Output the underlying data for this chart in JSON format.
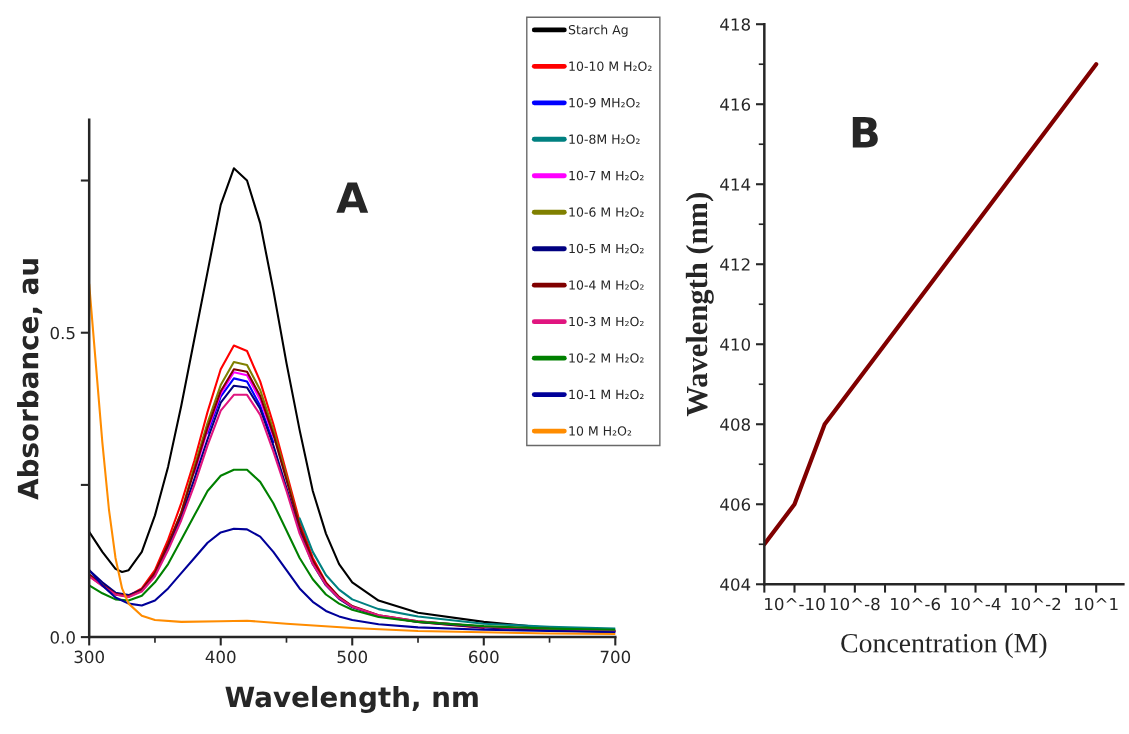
{
  "chart_data": [
    {
      "type": "line",
      "xlabel": "Wavelength, nm",
      "ylabel": "Absorbance, au",
      "annotations": [
        "A"
      ],
      "legend": "top right",
      "xlim": [
        300,
        700
      ],
      "xticks": [
        300,
        400,
        500,
        600,
        700
      ],
      "ylim": [
        0,
        0.85
      ],
      "yticks": [
        {
          "value": 0,
          "label": "0.0"
        },
        {
          "value": 0.25,
          "label": null
        },
        0.5,
        {
          "value": 0.75,
          "label": null
        }
      ],
      "grid": false,
      "x": [
        300,
        310,
        320,
        330,
        340,
        350,
        360,
        370,
        380,
        390,
        400,
        410,
        420,
        430,
        440,
        450,
        460,
        470,
        480,
        490,
        500,
        520,
        550,
        600,
        650,
        700
      ],
      "series": [
        {
          "name": "Starch Ag",
          "color": "#000000",
          "x": [
            300,
            310,
            320,
            325,
            330,
            340,
            350,
            360,
            370,
            380,
            390,
            400,
            410,
            420,
            430,
            440,
            450,
            460,
            470,
            480,
            490,
            500,
            520,
            550,
            600,
            650,
            700
          ],
          "values": [
            0.173,
            0.14,
            0.112,
            0.107,
            0.11,
            0.14,
            0.2,
            0.28,
            0.38,
            0.49,
            0.6,
            0.71,
            0.77,
            0.75,
            0.68,
            0.57,
            0.45,
            0.34,
            0.24,
            0.17,
            0.12,
            0.09,
            0.06,
            0.04,
            0.025,
            0.015,
            0.01
          ]
        },
        {
          "name": "10-10 M H₂O₂",
          "color": "#ff0000",
          "values": [
            0.1,
            0.085,
            0.07,
            0.068,
            0.08,
            0.11,
            0.16,
            0.22,
            0.29,
            0.37,
            0.44,
            0.479,
            0.47,
            0.42,
            0.35,
            0.27,
            0.19,
            0.13,
            0.09,
            0.065,
            0.05,
            0.035,
            0.025,
            0.015,
            null,
            null
          ]
        },
        {
          "name": "10-9 MH₂O₂",
          "color": "#0000ff",
          "values": [
            null,
            null,
            null,
            null,
            null,
            null,
            null,
            null,
            null,
            0.335,
            0.395,
            0.425,
            0.42,
            0.38,
            0.32,
            null,
            null,
            null,
            null,
            null,
            null,
            null,
            null,
            null,
            null,
            null
          ]
        },
        {
          "name": "10-8M H₂O₂",
          "color": "#008080",
          "values": [
            null,
            null,
            null,
            null,
            null,
            null,
            null,
            null,
            null,
            null,
            null,
            null,
            null,
            null,
            null,
            null,
            0.195,
            0.14,
            0.102,
            0.078,
            0.062,
            0.046,
            0.034,
            0.022,
            0.017,
            0.014
          ]
        },
        {
          "name": "10-7 M H₂O₂",
          "color": "#ff00ff",
          "values": [
            null,
            null,
            null,
            null,
            null,
            null,
            null,
            null,
            0.27,
            0.34,
            0.4,
            0.435,
            0.43,
            0.39,
            0.33,
            null,
            null,
            null,
            null,
            null,
            null,
            null,
            null,
            null,
            null,
            null
          ]
        },
        {
          "name": "10-6 M H₂O₂",
          "color": "#808000",
          "values": [
            null,
            null,
            0.07,
            0.066,
            0.077,
            0.105,
            0.152,
            0.205,
            0.28,
            0.352,
            0.414,
            0.452,
            0.447,
            0.406,
            0.34,
            0.264,
            0.183,
            null,
            null,
            null,
            null,
            null,
            null,
            null,
            null,
            null
          ]
        },
        {
          "name": "10-5 M H₂O₂",
          "color": "#000080",
          "values": [
            0.11,
            0.09,
            0.073,
            0.069,
            0.078,
            0.104,
            0.148,
            0.198,
            0.26,
            0.325,
            0.385,
            0.413,
            0.41,
            0.375,
            0.315,
            0.245,
            0.175,
            0.12,
            0.085,
            0.063,
            0.049,
            0.035,
            0.025,
            0.016,
            0.011,
            0.009
          ]
        },
        {
          "name": "10-4 M H₂O₂",
          "color": "#800000",
          "values": [
            0.103,
            0.086,
            0.071,
            0.067,
            0.077,
            0.106,
            0.153,
            0.204,
            0.274,
            0.344,
            0.404,
            0.44,
            0.436,
            0.396,
            0.333,
            0.258,
            0.182,
            0.126,
            0.089,
            0.066,
            0.051,
            0.036,
            0.026,
            0.017,
            0.012,
            0.01
          ]
        },
        {
          "name": "10-3 M H₂O₂",
          "color": "#e0157f",
          "values": [
            0.1,
            0.084,
            0.07,
            0.066,
            0.075,
            0.1,
            0.143,
            0.192,
            0.25,
            0.315,
            0.372,
            0.398,
            0.398,
            0.365,
            0.305,
            0.24,
            0.17,
            0.12,
            0.086,
            0.064,
            0.05,
            0.036,
            0.026,
            0.017,
            null,
            0.01
          ]
        },
        {
          "name": "10-2 M H₂O₂",
          "color": "#008000",
          "values": [
            0.085,
            0.072,
            0.062,
            0.06,
            0.068,
            0.09,
            0.12,
            0.16,
            0.2,
            0.24,
            0.265,
            0.275,
            0.275,
            0.255,
            0.22,
            0.175,
            0.13,
            0.095,
            0.07,
            0.055,
            0.045,
            0.033,
            0.025,
            0.018,
            0.014,
            0.012
          ]
        },
        {
          "name": "10-1 M H₂O₂",
          "color": "#000099",
          "values": [
            0.11,
            0.085,
            0.065,
            0.055,
            0.052,
            0.06,
            0.08,
            0.105,
            0.13,
            0.155,
            0.172,
            0.178,
            0.177,
            0.165,
            0.14,
            0.11,
            0.08,
            0.058,
            0.043,
            0.034,
            0.028,
            0.021,
            0.016,
            0.012,
            0.01,
            0.008
          ]
        },
        {
          "name": "10 M H₂O₂",
          "color": "#ff8c00",
          "x": [
            300,
            305,
            310,
            315,
            320,
            325,
            330,
            340,
            350,
            370,
            400,
            420,
            450,
            500,
            550,
            600,
            650,
            700
          ],
          "values": [
            0.58,
            0.45,
            0.32,
            0.21,
            0.13,
            0.08,
            0.055,
            0.035,
            0.028,
            0.025,
            0.026,
            0.027,
            0.022,
            0.015,
            0.01,
            0.008,
            0.006,
            0.005
          ]
        }
      ]
    },
    {
      "type": "line",
      "xlabel": "Concentration (M)",
      "ylabel": "Wavelength (nm)",
      "annotations": [
        "B"
      ],
      "ylim": [
        404,
        418
      ],
      "yticks": [
        404,
        406,
        408,
        410,
        412,
        414,
        416,
        418
      ],
      "grid": false,
      "legend": false,
      "categories": [
        null,
        "10^-10",
        null,
        "10^-8",
        null,
        "10^-6",
        null,
        "10^-4",
        null,
        "10^-2",
        null,
        "10^1"
      ],
      "series": [
        {
          "color": "#800000",
          "values": [
            405,
            406,
            408,
            409,
            410,
            411,
            412,
            413,
            414,
            415,
            416,
            417
          ]
        }
      ]
    }
  ]
}
